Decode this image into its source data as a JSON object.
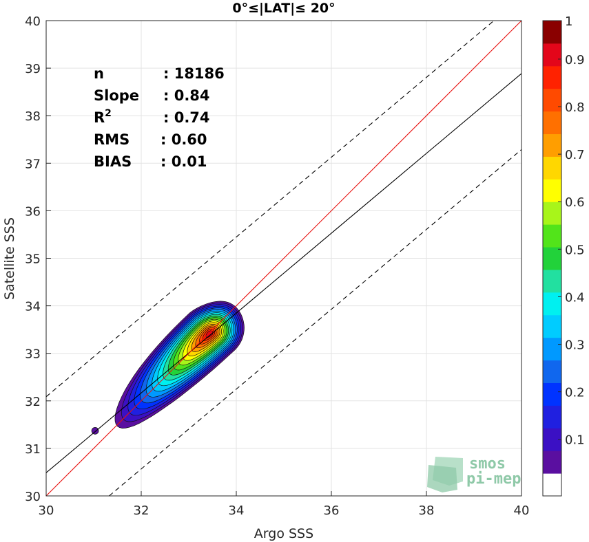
{
  "chart_data": {
    "type": "contour",
    "title": "0°≤|LAT|≤ 20°",
    "xlabel": "Argo SSS",
    "ylabel": "Satellite SSS",
    "xlim": [
      30,
      40
    ],
    "ylim": [
      30,
      40
    ],
    "xticks": [
      "30",
      "32",
      "34",
      "36",
      "38",
      "40"
    ],
    "yticks": [
      "30",
      "31",
      "32",
      "33",
      "34",
      "35",
      "36",
      "37",
      "38",
      "39",
      "40"
    ],
    "grid": true,
    "stats": [
      {
        "label": "n",
        "value": ": 18186"
      },
      {
        "label": "Slope",
        "value": ": 0.84"
      },
      {
        "label": "R",
        "sup": "2",
        "value": ": 0.74"
      },
      {
        "label": "RMS",
        "value": ": 0.60"
      },
      {
        "label": "BIAS",
        "value": ": 0.01"
      }
    ],
    "lines": {
      "identity": {
        "color": "#e8110f",
        "slope": 1,
        "intercept": 0
      },
      "fit": {
        "color": "#000000",
        "slope": 0.84,
        "intercept": 5.287
      },
      "fit_upper_dashed": {
        "color": "#000000",
        "slope": 0.84,
        "intercept": 6.887
      },
      "fit_lower_dashed": {
        "color": "#000000",
        "slope": 0.84,
        "intercept": 3.687
      }
    },
    "density_peak": {
      "x": 33.45,
      "y": 33.42
    },
    "colorbar": {
      "range": [
        0,
        1
      ],
      "ticks": [
        "0.1",
        "0.2",
        "0.3",
        "0.4",
        "0.5",
        "0.6",
        "0.7",
        "0.8",
        "0.9",
        "1"
      ],
      "levels": [
        "#ffffff",
        "#5a0fa0",
        "#3b10c4",
        "#2020e0",
        "#0033ff",
        "#1067ee",
        "#0099ff",
        "#00ccff",
        "#00f0f0",
        "#22e0a0",
        "#22d23a",
        "#52e41a",
        "#a8f51a",
        "#ffff00",
        "#ffd700",
        "#ff9e00",
        "#ff7000",
        "#ff4a00",
        "#ff2200",
        "#e3061a",
        "#8a0000"
      ]
    }
  },
  "watermark": {
    "line1": "smos",
    "line2": "pi-mep",
    "color": "#8fc9a8"
  }
}
